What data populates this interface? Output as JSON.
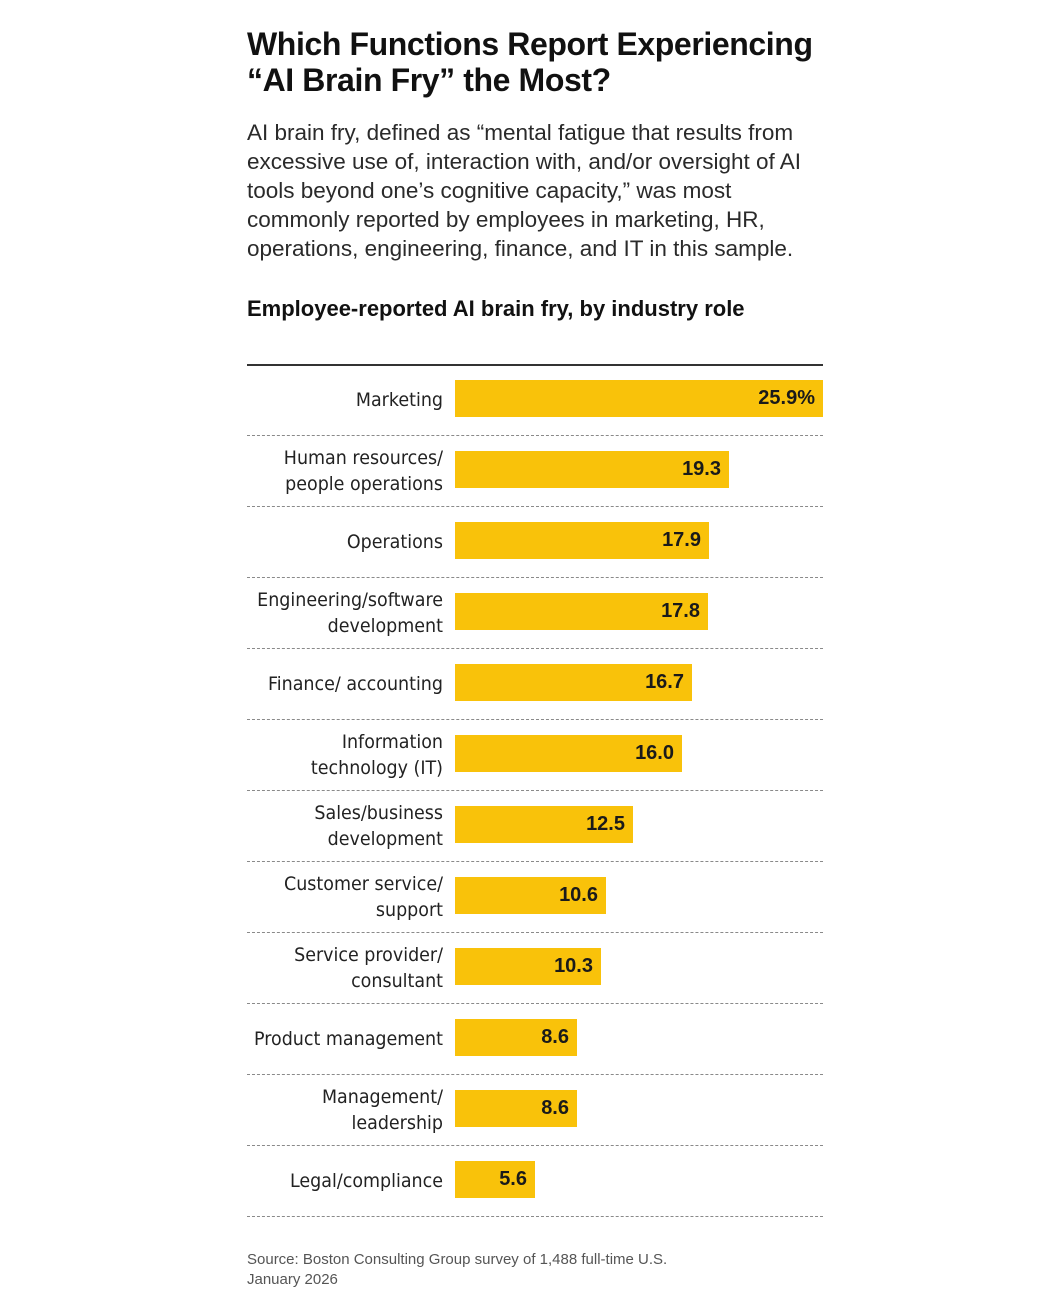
{
  "title": "Which Functions Report Experiencing “AI Brain Fry” the Most?",
  "subtitle": "AI brain fry, defined as “mental fatigue that results from excessive use of, interaction with, and/or oversight of AI tools beyond one’s cognitive capacity,” was most commonly reported by employees in marketing, HR, operations, engineering, finance, and IT in this sample.",
  "source": {
    "line1": "Source: Boston Consulting Group survey of 1,488 full-time U.S.",
    "line2": "January 2026"
  },
  "colors": {
    "bar": "#f9c20a",
    "text": "#1a1a1a",
    "rule": "#333333"
  },
  "chart_data": {
    "type": "bar",
    "orientation": "horizontal",
    "title": "Employee-reported AI brain fry, by industry role",
    "xlabel": "",
    "ylabel": "",
    "xlim": [
      0,
      25.9
    ],
    "grid": false,
    "categories": [
      "Marketing",
      "Human resources/ people operations",
      "Operations",
      "Engineering/software development",
      "Finance/ accounting",
      "Information technology (IT)",
      "Sales/business development",
      "Customer service/ support",
      "Service provider/ consultant",
      "Product management",
      "Management/ leadership",
      "Legal/compliance"
    ],
    "values": [
      25.9,
      19.3,
      17.9,
      17.8,
      16.7,
      16.0,
      12.5,
      10.6,
      10.3,
      8.6,
      8.6,
      5.6
    ],
    "data_labels": [
      "25.9%",
      "19.3",
      "17.9",
      "17.8",
      "16.7",
      "16.0",
      "12.5",
      "10.6",
      "10.3",
      "8.6",
      "8.6",
      "5.6"
    ]
  }
}
